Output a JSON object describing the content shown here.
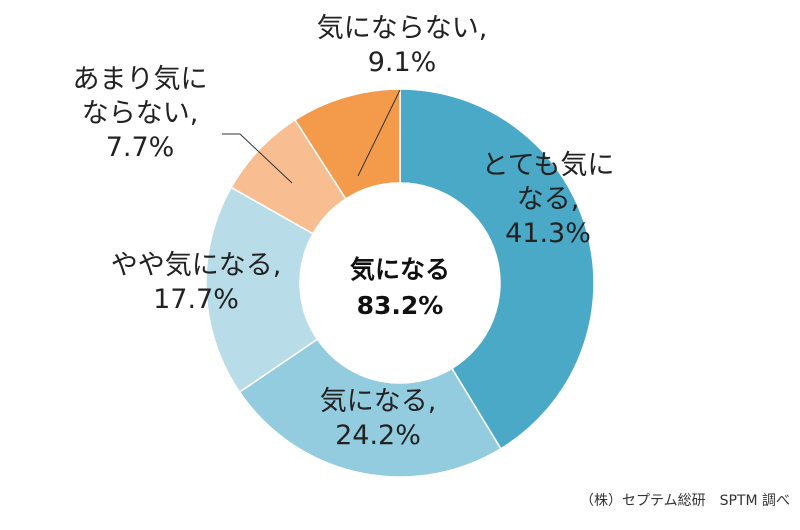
{
  "chart_data": {
    "type": "pie",
    "variant": "donut",
    "slices": [
      {
        "label_lines": [
          "とても気に",
          "なる,",
          "41.3%"
        ],
        "value": 41.3,
        "color": "#4BA9C8"
      },
      {
        "label_lines": [
          "気になる,",
          "24.2%"
        ],
        "value": 24.2,
        "color": "#93CCDF"
      },
      {
        "label_lines": [
          "やや気になる,",
          "17.7%"
        ],
        "value": 17.7,
        "color": "#B8DDE8"
      },
      {
        "label_lines": [
          "あまり気に",
          "ならない,",
          "7.7%"
        ],
        "value": 7.7,
        "color": "#F8BE91"
      },
      {
        "label_lines": [
          "気にならない,",
          "9.1%"
        ],
        "value": 9.1,
        "color": "#F39A4B"
      }
    ],
    "center_label": [
      "気になる",
      "83.2%"
    ],
    "source": "（株）セプテム総研　SPTM 調べ"
  }
}
